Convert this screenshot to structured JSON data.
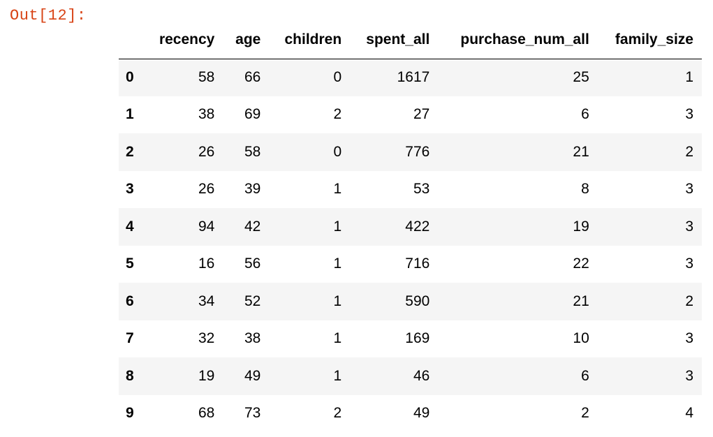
{
  "prompt": "Out[12]:",
  "table": {
    "index_header": "",
    "columns": [
      "recency",
      "age",
      "children",
      "spent_all",
      "purchase_num_all",
      "family_size"
    ],
    "rows": [
      {
        "index": "0",
        "values": [
          "58",
          "66",
          "0",
          "1617",
          "25",
          "1"
        ]
      },
      {
        "index": "1",
        "values": [
          "38",
          "69",
          "2",
          "27",
          "6",
          "3"
        ]
      },
      {
        "index": "2",
        "values": [
          "26",
          "58",
          "0",
          "776",
          "21",
          "2"
        ]
      },
      {
        "index": "3",
        "values": [
          "26",
          "39",
          "1",
          "53",
          "8",
          "3"
        ]
      },
      {
        "index": "4",
        "values": [
          "94",
          "42",
          "1",
          "422",
          "19",
          "3"
        ]
      },
      {
        "index": "5",
        "values": [
          "16",
          "56",
          "1",
          "716",
          "22",
          "3"
        ]
      },
      {
        "index": "6",
        "values": [
          "34",
          "52",
          "1",
          "590",
          "21",
          "2"
        ]
      },
      {
        "index": "7",
        "values": [
          "32",
          "38",
          "1",
          "169",
          "10",
          "3"
        ]
      },
      {
        "index": "8",
        "values": [
          "19",
          "49",
          "1",
          "46",
          "6",
          "3"
        ]
      },
      {
        "index": "9",
        "values": [
          "68",
          "73",
          "2",
          "49",
          "2",
          "4"
        ]
      }
    ]
  },
  "colors": {
    "prompt": "#d84315",
    "row_stripe": "#f5f5f5"
  }
}
